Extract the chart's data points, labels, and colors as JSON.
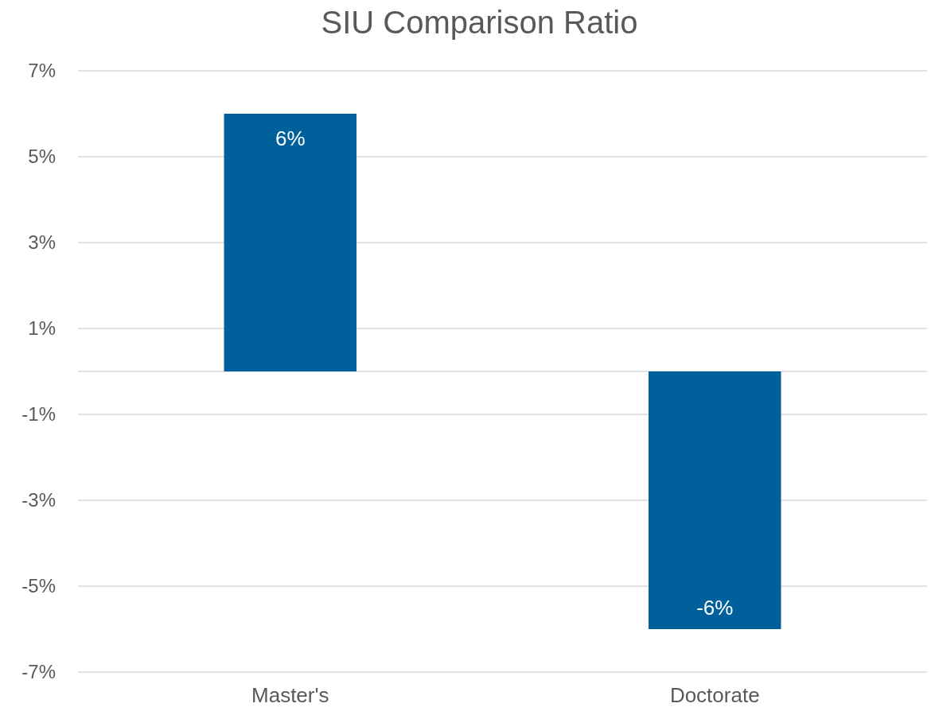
{
  "chart_data": {
    "type": "bar",
    "title": "SIU Comparison Ratio",
    "categories": [
      "Master's",
      "Doctorate"
    ],
    "values": [
      6,
      -6
    ],
    "color": "#00609c",
    "value_labels": [
      "6%",
      "-6%"
    ],
    "ylim": [
      -7,
      7
    ],
    "yticks": [
      {
        "value": 7,
        "label": "7%"
      },
      {
        "value": 5,
        "label": "5%"
      },
      {
        "value": 3,
        "label": "3%"
      },
      {
        "value": 1,
        "label": "1%"
      },
      {
        "value": -1,
        "label": "-1%"
      },
      {
        "value": -3,
        "label": "-3%"
      },
      {
        "value": -5,
        "label": "-5%"
      },
      {
        "value": -7,
        "label": "-7%"
      }
    ],
    "grid": "y"
  }
}
